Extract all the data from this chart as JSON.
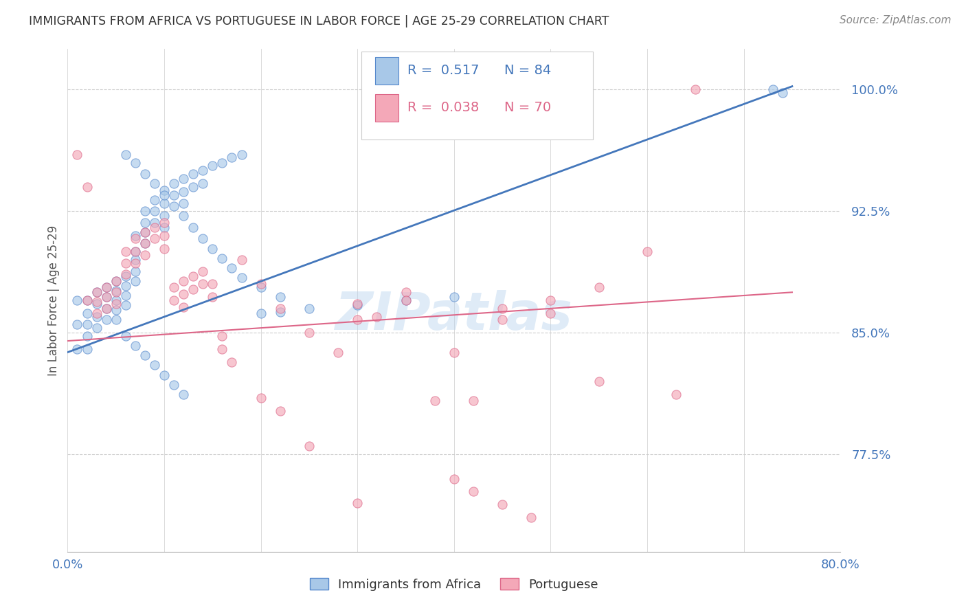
{
  "title": "IMMIGRANTS FROM AFRICA VS PORTUGUESE IN LABOR FORCE | AGE 25-29 CORRELATION CHART",
  "source": "Source: ZipAtlas.com",
  "ylabel": "In Labor Force | Age 25-29",
  "xlim": [
    0.0,
    0.8
  ],
  "ylim": [
    0.715,
    1.025
  ],
  "xticks": [
    0.0,
    0.1,
    0.2,
    0.3,
    0.4,
    0.5,
    0.6,
    0.7,
    0.8
  ],
  "xticklabels": [
    "0.0%",
    "",
    "",
    "",
    "",
    "",
    "",
    "",
    "80.0%"
  ],
  "yticks": [
    0.775,
    0.85,
    0.925,
    1.0
  ],
  "yticklabels": [
    "77.5%",
    "85.0%",
    "92.5%",
    "100.0%"
  ],
  "blue_color": "#a8c8e8",
  "pink_color": "#f4a8b8",
  "blue_edge_color": "#5588cc",
  "pink_edge_color": "#dd6688",
  "blue_line_color": "#4477bb",
  "pink_line_color": "#dd6688",
  "legend_R_blue": "0.517",
  "legend_N_blue": "84",
  "legend_R_pink": "0.038",
  "legend_N_pink": "70",
  "legend_label_blue": "Immigrants from Africa",
  "legend_label_pink": "Portuguese",
  "watermark": "ZIPatlas",
  "grid_color": "#cccccc",
  "title_color": "#333333",
  "axis_label_color": "#4477bb",
  "blue_scatter_x": [
    0.01,
    0.01,
    0.01,
    0.02,
    0.02,
    0.02,
    0.02,
    0.02,
    0.03,
    0.03,
    0.03,
    0.03,
    0.04,
    0.04,
    0.04,
    0.04,
    0.05,
    0.05,
    0.05,
    0.05,
    0.05,
    0.06,
    0.06,
    0.06,
    0.06,
    0.07,
    0.07,
    0.07,
    0.07,
    0.07,
    0.08,
    0.08,
    0.08,
    0.08,
    0.09,
    0.09,
    0.09,
    0.1,
    0.1,
    0.1,
    0.1,
    0.11,
    0.11,
    0.12,
    0.12,
    0.12,
    0.13,
    0.13,
    0.14,
    0.14,
    0.15,
    0.16,
    0.17,
    0.18,
    0.2,
    0.22,
    0.25,
    0.3,
    0.35,
    0.4,
    0.06,
    0.07,
    0.08,
    0.09,
    0.1,
    0.11,
    0.12,
    0.06,
    0.07,
    0.08,
    0.09,
    0.1,
    0.11,
    0.12,
    0.13,
    0.14,
    0.15,
    0.16,
    0.17,
    0.18,
    0.2,
    0.22,
    0.73,
    0.74
  ],
  "blue_scatter_y": [
    0.87,
    0.855,
    0.84,
    0.87,
    0.862,
    0.855,
    0.848,
    0.84,
    0.875,
    0.868,
    0.86,
    0.853,
    0.878,
    0.872,
    0.865,
    0.858,
    0.882,
    0.876,
    0.87,
    0.864,
    0.858,
    0.885,
    0.879,
    0.873,
    0.867,
    0.91,
    0.9,
    0.895,
    0.888,
    0.882,
    0.925,
    0.918,
    0.912,
    0.905,
    0.932,
    0.925,
    0.918,
    0.938,
    0.93,
    0.922,
    0.915,
    0.942,
    0.935,
    0.945,
    0.937,
    0.93,
    0.948,
    0.94,
    0.95,
    0.942,
    0.953,
    0.955,
    0.958,
    0.96,
    0.862,
    0.863,
    0.865,
    0.867,
    0.87,
    0.872,
    0.848,
    0.842,
    0.836,
    0.83,
    0.824,
    0.818,
    0.812,
    0.96,
    0.955,
    0.948,
    0.942,
    0.935,
    0.928,
    0.922,
    0.915,
    0.908,
    0.902,
    0.896,
    0.89,
    0.884,
    0.878,
    0.872,
    1.0,
    0.998
  ],
  "pink_scatter_x": [
    0.01,
    0.02,
    0.02,
    0.03,
    0.03,
    0.03,
    0.04,
    0.04,
    0.04,
    0.05,
    0.05,
    0.05,
    0.06,
    0.06,
    0.06,
    0.07,
    0.07,
    0.07,
    0.08,
    0.08,
    0.08,
    0.09,
    0.09,
    0.1,
    0.1,
    0.1,
    0.11,
    0.11,
    0.12,
    0.12,
    0.12,
    0.13,
    0.13,
    0.14,
    0.14,
    0.15,
    0.15,
    0.16,
    0.16,
    0.17,
    0.18,
    0.2,
    0.22,
    0.25,
    0.28,
    0.3,
    0.3,
    0.32,
    0.35,
    0.35,
    0.38,
    0.4,
    0.42,
    0.45,
    0.45,
    0.5,
    0.5,
    0.55,
    0.55,
    0.6,
    0.63,
    0.65,
    0.4,
    0.42,
    0.45,
    0.48,
    0.2,
    0.22,
    0.25,
    0.3
  ],
  "pink_scatter_y": [
    0.96,
    0.94,
    0.87,
    0.875,
    0.869,
    0.862,
    0.878,
    0.872,
    0.865,
    0.882,
    0.875,
    0.868,
    0.9,
    0.893,
    0.886,
    0.908,
    0.9,
    0.893,
    0.912,
    0.905,
    0.898,
    0.915,
    0.908,
    0.918,
    0.91,
    0.902,
    0.878,
    0.87,
    0.882,
    0.874,
    0.866,
    0.885,
    0.877,
    0.888,
    0.88,
    0.88,
    0.872,
    0.848,
    0.84,
    0.832,
    0.895,
    0.88,
    0.865,
    0.85,
    0.838,
    0.868,
    0.858,
    0.86,
    0.875,
    0.87,
    0.808,
    0.838,
    0.808,
    0.865,
    0.858,
    0.87,
    0.862,
    0.878,
    0.82,
    0.9,
    0.812,
    1.0,
    0.76,
    0.752,
    0.744,
    0.736,
    0.81,
    0.802,
    0.78,
    0.745
  ],
  "blue_line_x": [
    0.0,
    0.75
  ],
  "blue_line_y": [
    0.838,
    1.002
  ],
  "pink_line_x": [
    0.0,
    0.75
  ],
  "pink_line_y": [
    0.845,
    0.875
  ]
}
